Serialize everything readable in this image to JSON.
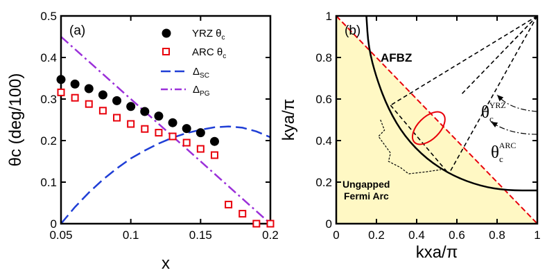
{
  "chart_data": [
    {
      "type": "scatter+line",
      "panel_label": "(a)",
      "xlabel": "x",
      "ylabel": "θc (deg/100)",
      "xlim": [
        0.05,
        0.2
      ],
      "ylim": [
        0,
        0.5
      ],
      "x_ticks": [
        "0.05",
        "0.1",
        "0.15",
        "0.2"
      ],
      "y_ticks": [
        "0",
        "0.1",
        "0.2",
        "0.3",
        "0.4",
        "0.5"
      ],
      "legend_position": "top-right",
      "series": [
        {
          "name": "YRZ θc",
          "label_main": "YRZ θ",
          "label_sub": "c",
          "style": "filled-circle",
          "color": "#000000",
          "x": [
            0.05,
            0.06,
            0.07,
            0.08,
            0.09,
            0.1,
            0.11,
            0.12,
            0.13,
            0.14,
            0.15,
            0.16
          ],
          "y": [
            0.347,
            0.336,
            0.325,
            0.31,
            0.296,
            0.282,
            0.27,
            0.259,
            0.243,
            0.229,
            0.219,
            0.198
          ]
        },
        {
          "name": "ARC θc",
          "label_main": "ARC θ",
          "label_sub": "c",
          "style": "open-square",
          "color": "#e8000b",
          "x": [
            0.05,
            0.06,
            0.07,
            0.08,
            0.09,
            0.1,
            0.11,
            0.12,
            0.13,
            0.14,
            0.15,
            0.16,
            0.17,
            0.18,
            0.19,
            0.2
          ],
          "y": [
            0.316,
            0.303,
            0.288,
            0.272,
            0.255,
            0.24,
            0.228,
            0.219,
            0.21,
            0.195,
            0.18,
            0.165,
            0.046,
            0.024,
            0.0,
            0.0
          ]
        },
        {
          "name": "Δ_SC",
          "label_main": "Δ",
          "label_sub": "SC",
          "style": "dashed",
          "color": "#1f3ed6",
          "x": [
            0.05,
            0.06,
            0.07,
            0.08,
            0.09,
            0.1,
            0.11,
            0.12,
            0.13,
            0.14,
            0.15,
            0.16,
            0.17,
            0.18,
            0.19,
            0.2
          ],
          "y": [
            0.0,
            0.04,
            0.075,
            0.106,
            0.133,
            0.157,
            0.176,
            0.193,
            0.207,
            0.218,
            0.226,
            0.232,
            0.234,
            0.231,
            0.222,
            0.208
          ]
        },
        {
          "name": "Δ_PG",
          "label_main": "Δ",
          "label_sub": "PG",
          "style": "dash-dot",
          "color": "#9b30d9",
          "x": [
            0.05,
            0.2
          ],
          "y": [
            0.45,
            0.0
          ]
        }
      ]
    },
    {
      "type": "diagram",
      "panel_label": "(b)",
      "xlabel": "kxa/π",
      "ylabel": "kya/π",
      "xlim": [
        0,
        1
      ],
      "ylim": [
        0,
        1
      ],
      "x_ticks": [
        "0",
        "0.2",
        "0.4",
        "0.6",
        "0.8",
        "1"
      ],
      "y_ticks": [
        "0",
        "0.2",
        "0.4",
        "0.6",
        "0.8",
        "1"
      ],
      "annotations": {
        "afbz": "AFBZ",
        "arc_line1": "Ungapped",
        "arc_line2": "Fermi Arc",
        "theta_yrz_main": "θ",
        "theta_yrz_sub": "c",
        "theta_yrz_sup": "YRZ",
        "theta_arc_main": "θ",
        "theta_arc_sub": "c",
        "theta_arc_sup": "ARC"
      },
      "afbz_boundary": {
        "from": [
          0,
          1
        ],
        "to": [
          1,
          0
        ]
      },
      "fermi_surface_points": [
        [
          0.15,
          1.0
        ],
        [
          0.16,
          0.85
        ],
        [
          0.2,
          0.7
        ],
        [
          0.26,
          0.55
        ],
        [
          0.34,
          0.42
        ],
        [
          0.45,
          0.31
        ],
        [
          0.58,
          0.23
        ],
        [
          0.72,
          0.18
        ],
        [
          0.85,
          0.16
        ],
        [
          1.0,
          0.16
        ]
      ],
      "pocket": {
        "center": [
          0.46,
          0.46
        ],
        "semi_axes": [
          0.1,
          0.053
        ],
        "angle_deg": -45
      },
      "colors": {
        "fill": "#fff8c4",
        "boundary": "#e8000b",
        "pocket": "#e8000b",
        "fermi": "#000000"
      }
    }
  ]
}
